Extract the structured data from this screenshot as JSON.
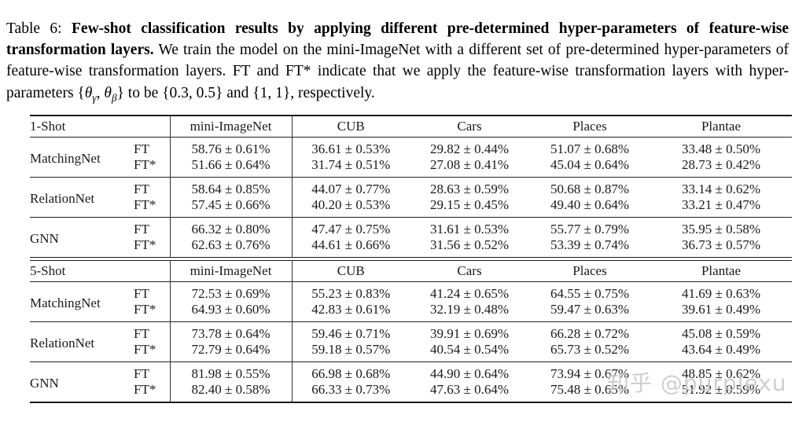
{
  "caption": {
    "label": "Table 6:",
    "bold": "Few-shot classification results by applying different pre-determined hyper-parameters of feature-wise transformation layers.",
    "body1": "We train the model on the mini-ImageNet with a different set of pre-determined hyper-parameters of feature-wise transformation layers. FT and FT* indicate that we apply the feature-wise transformation layers with hyper-parameters {",
    "theta1": "θ",
    "sub1": "γ",
    "sep": ", ",
    "theta2": "θ",
    "sub2": "β",
    "body2": "} to be {0.3, 0.5} and {1, 1}, respectively."
  },
  "tables": [
    {
      "shot_label": "1-Shot",
      "columns": [
        "mini-ImageNet",
        "CUB",
        "Cars",
        "Places",
        "Plantae"
      ],
      "groups": [
        {
          "method": "MatchingNet",
          "rows": [
            {
              "variant": "FT",
              "values": [
                "58.76 ± 0.61%",
                "36.61 ± 0.53%",
                "29.82 ± 0.44%",
                "51.07 ± 0.68%",
                "33.48 ± 0.50%"
              ]
            },
            {
              "variant": "FT*",
              "values": [
                "51.66 ± 0.64%",
                "31.74 ± 0.51%",
                "27.08 ± 0.41%",
                "45.04 ± 0.64%",
                "28.73 ± 0.42%"
              ]
            }
          ]
        },
        {
          "method": "RelationNet",
          "rows": [
            {
              "variant": "FT",
              "values": [
                "58.64 ± 0.85%",
                "44.07 ± 0.77%",
                "28.63 ± 0.59%",
                "50.68 ± 0.87%",
                "33.14 ± 0.62%"
              ]
            },
            {
              "variant": "FT*",
              "values": [
                "57.45 ± 0.66%",
                "40.20 ± 0.53%",
                "29.15 ± 0.45%",
                "49.40 ± 0.64%",
                "33.21 ± 0.47%"
              ]
            }
          ]
        },
        {
          "method": "GNN",
          "rows": [
            {
              "variant": "FT",
              "values": [
                "66.32 ± 0.80%",
                "47.47 ± 0.75%",
                "31.61 ± 0.53%",
                "55.77 ± 0.79%",
                "35.95 ± 0.58%"
              ]
            },
            {
              "variant": "FT*",
              "values": [
                "62.63 ± 0.76%",
                "44.61 ± 0.66%",
                "31.56 ± 0.52%",
                "53.39 ± 0.74%",
                "36.73 ± 0.57%"
              ]
            }
          ]
        }
      ]
    },
    {
      "shot_label": "5-Shot",
      "columns": [
        "mini-ImageNet",
        "CUB",
        "Cars",
        "Places",
        "Plantae"
      ],
      "groups": [
        {
          "method": "MatchingNet",
          "rows": [
            {
              "variant": "FT",
              "values": [
                "72.53 ± 0.69%",
                "55.23 ± 0.83%",
                "41.24 ± 0.65%",
                "64.55 ± 0.75%",
                "41.69 ± 0.63%"
              ]
            },
            {
              "variant": "FT*",
              "values": [
                "64.93 ± 0.60%",
                "42.83 ± 0.61%",
                "32.19 ± 0.48%",
                "59.47 ± 0.63%",
                "39.61 ± 0.49%"
              ]
            }
          ]
        },
        {
          "method": "RelationNet",
          "rows": [
            {
              "variant": "FT",
              "values": [
                "73.78 ± 0.64%",
                "59.46 ± 0.71%",
                "39.91 ± 0.69%",
                "66.28 ± 0.72%",
                "45.08 ± 0.59%"
              ]
            },
            {
              "variant": "FT*",
              "values": [
                "72.79 ± 0.64%",
                "59.18 ± 0.57%",
                "40.54 ± 0.54%",
                "65.73 ± 0.52%",
                "43.64 ± 0.49%"
              ]
            }
          ]
        },
        {
          "method": "GNN",
          "rows": [
            {
              "variant": "FT",
              "values": [
                "81.98 ± 0.55%",
                "66.98 ± 0.68%",
                "44.90 ± 0.64%",
                "73.94 ± 0.67%",
                "48.85 ± 0.62%"
              ]
            },
            {
              "variant": "FT*",
              "values": [
                "82.40 ± 0.58%",
                "66.33 ± 0.73%",
                "47.63 ± 0.64%",
                "75.48 ± 0.65%",
                "51.92 ± 0.59%"
              ]
            }
          ]
        }
      ]
    }
  ],
  "watermark": "知乎 @purplexu"
}
